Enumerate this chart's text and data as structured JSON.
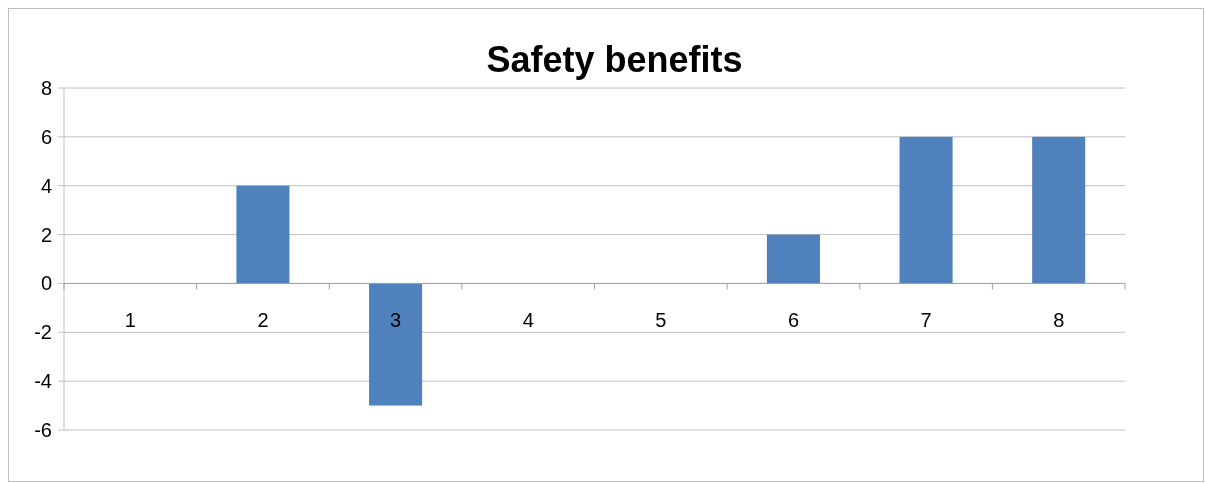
{
  "chart_data": {
    "type": "bar",
    "title": "Safety benefits",
    "categories": [
      "1",
      "2",
      "3",
      "4",
      "5",
      "6",
      "7",
      "8"
    ],
    "values": [
      0,
      4,
      -5,
      0,
      0,
      2,
      6,
      6
    ],
    "color": "#4f81bd",
    "ylim": [
      -6,
      8
    ],
    "yticks": [
      -6,
      -4,
      -2,
      0,
      2,
      4,
      6,
      8
    ],
    "grid": "y"
  }
}
